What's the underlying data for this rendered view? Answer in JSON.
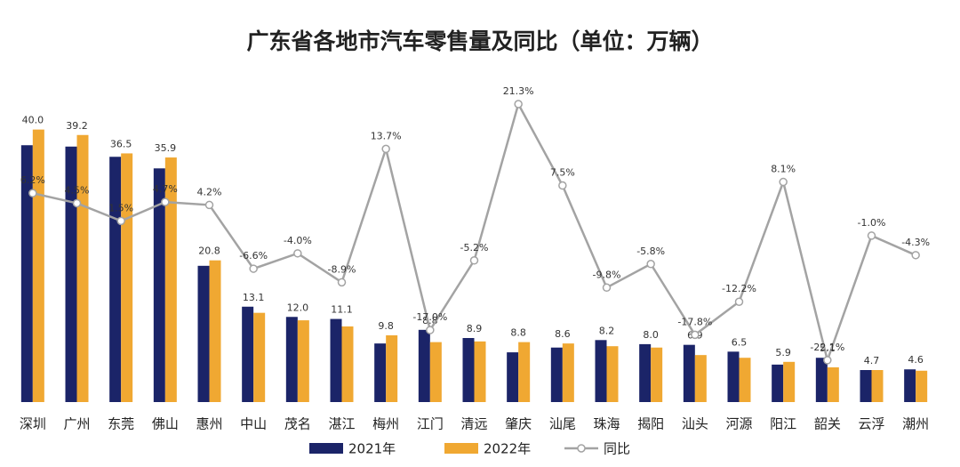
{
  "chart_data": {
    "type": "bar",
    "title": "广东省各地市汽车零售量及同比（单位：万辆）",
    "categories": [
      "深圳",
      "广州",
      "东莞",
      "佛山",
      "惠州",
      "中山",
      "茂名",
      "湛江",
      "梅州",
      "江门",
      "清远",
      "肇庆",
      "汕尾",
      "珠海",
      "揭阳",
      "汕头",
      "河源",
      "阳江",
      "韶关",
      "云浮",
      "潮州"
    ],
    "ylim": [
      0,
      44
    ],
    "y2lim": [
      -29.2,
      21.6
    ],
    "series": [
      {
        "name": "2021年",
        "color": "#1b2468",
        "values": [
          37.7,
          37.5,
          36.0,
          34.3,
          20.0,
          14.0,
          12.5,
          12.2,
          8.6,
          10.6,
          9.4,
          7.3,
          8.0,
          9.1,
          8.5,
          8.4,
          7.4,
          5.5,
          6.5,
          4.7,
          4.8
        ]
      },
      {
        "name": "2022年",
        "color": "#f0a832",
        "values": [
          40.0,
          39.2,
          36.5,
          35.9,
          20.8,
          13.1,
          12.0,
          11.1,
          9.8,
          8.8,
          8.9,
          8.8,
          8.6,
          8.2,
          8.0,
          6.9,
          6.5,
          5.9,
          5.1,
          4.7,
          4.6
        ],
        "value_labels": [
          "40.0",
          "39.2",
          "36.5",
          "35.9",
          "20.8",
          "13.1",
          "12.0",
          "11.1",
          "9.8",
          "8.8",
          "8.9",
          "8.8",
          "8.6",
          "8.2",
          "8.0",
          "6.9",
          "6.5",
          "5.9",
          "5.1",
          "4.7",
          "4.6"
        ]
      },
      {
        "name": "同比",
        "type": "line",
        "axis": "y2",
        "color": "#a3a3a3",
        "values": [
          6.2,
          4.5,
          1.5,
          4.7,
          4.2,
          -6.6,
          -4.0,
          -8.9,
          13.7,
          -17.0,
          -5.2,
          21.3,
          7.5,
          -9.8,
          -5.8,
          -17.8,
          -12.2,
          8.1,
          -22.1,
          -1.0,
          -4.3
        ],
        "value_labels": [
          "6.2%",
          "4.5%",
          "1.5%",
          "4.7%",
          "4.2%",
          "-6.6%",
          "-4.0%",
          "-8.9%",
          "13.7%",
          "-17.0%",
          "-5.2%",
          "21.3%",
          "7.5%",
          "-9.8%",
          "-5.8%",
          "-17.8%",
          "-12.2%",
          "8.1%",
          "-22.1%",
          "-1.0%",
          "-4.3%"
        ]
      }
    ]
  }
}
